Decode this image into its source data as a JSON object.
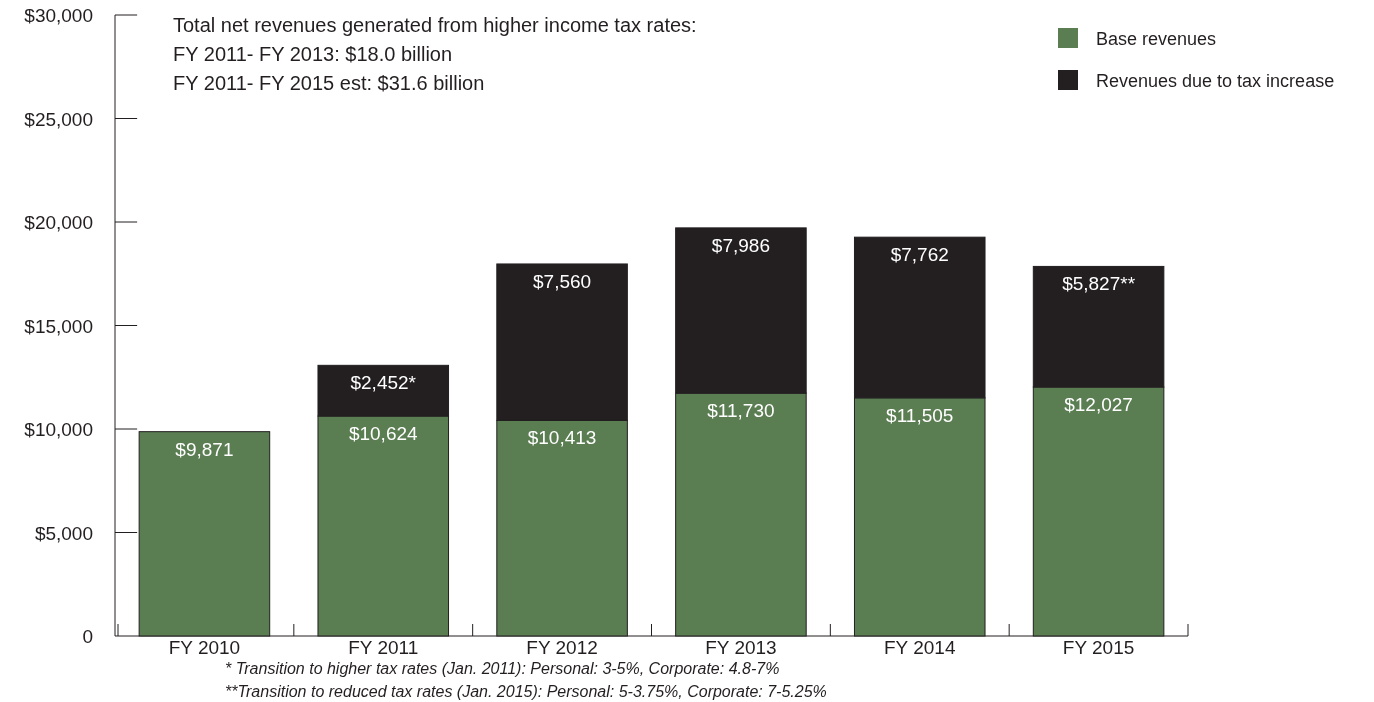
{
  "chart_data": {
    "type": "bar",
    "stacked": true,
    "categories": [
      "FY 2010",
      "FY 2011",
      "FY 2012",
      "FY 2013",
      "FY 2014",
      "FY 2015"
    ],
    "series": [
      {
        "name": "Base revenues",
        "color": "#5a7d52",
        "values": [
          9871,
          10624,
          10413,
          11730,
          11505,
          12027
        ],
        "value_labels": [
          "$9,871",
          "$10,624",
          "$10,413",
          "$11,730",
          "$11,505",
          "$12,027"
        ]
      },
      {
        "name": "Revenues due to tax increase",
        "color": "#231f20",
        "values": [
          null,
          2452,
          7560,
          7986,
          7762,
          5827
        ],
        "value_labels": [
          null,
          "$2,452*",
          "$7,560",
          "$7,986",
          "$7,762",
          "$5,827**"
        ]
      }
    ],
    "ylim": [
      0,
      30000
    ],
    "yticks": [
      0,
      {
        "value": 5000,
        "label": "$5,000"
      },
      {
        "value": 10000,
        "label": "$10,000"
      },
      {
        "value": 15000,
        "label": "$15,000"
      },
      {
        "value": 20000,
        "label": "$20,000"
      },
      {
        "value": 25000,
        "label": "$25,000"
      },
      {
        "value": 30000,
        "label": "$30,000"
      }
    ],
    "legend": "top right",
    "annotations": [
      "Total net revenues generated from higher income tax rates:",
      "FY 2011- FY 2013: $18.0 billion",
      "FY 2011- FY 2015 est: $31.6 billion",
      "* Transition to higher tax rates (Jan. 2011): Personal: 3-5%, Corporate: 4.8-7%",
      "**Transition to reduced tax rates (Jan. 2015): Personal: 5-3.75%, Corporate: 7-5.25%"
    ]
  }
}
